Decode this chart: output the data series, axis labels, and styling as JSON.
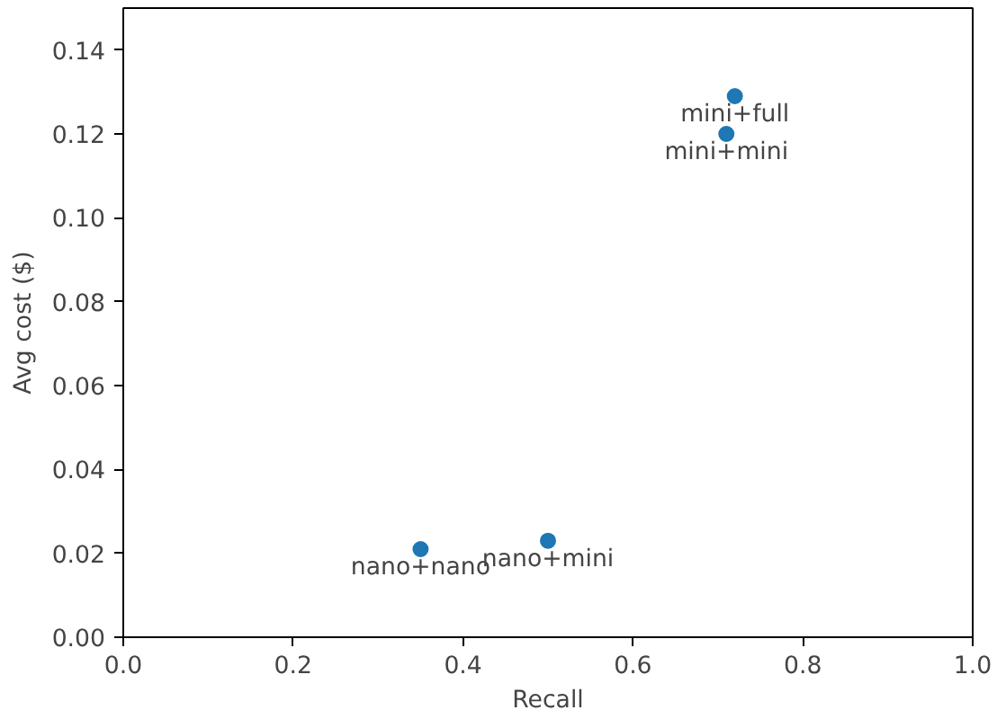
{
  "chart_data": {
    "type": "scatter",
    "xlabel": "Recall",
    "ylabel": "Avg cost ($)",
    "x": [
      0.72,
      0.71,
      0.35,
      0.5
    ],
    "series": [
      {
        "color": "#1f77b4",
        "values": [
          0.129,
          0.12,
          0.021,
          0.023
        ]
      }
    ],
    "marker": "circle",
    "grid": false,
    "xlim": [
      0,
      1
    ],
    "ylim": [
      0,
      0.15
    ],
    "xticks": [
      {
        "value": 0,
        "label": "0.0"
      },
      {
        "value": 0.2,
        "label": "0.2"
      },
      {
        "value": 0.4,
        "label": "0.4"
      },
      {
        "value": 0.6,
        "label": "0.6"
      },
      {
        "value": 0.8,
        "label": "0.8"
      },
      {
        "value": 1,
        "label": "1.0"
      }
    ],
    "yticks": [
      {
        "value": 0,
        "label": "0.00"
      },
      {
        "value": 0.02,
        "label": "0.02"
      },
      {
        "value": 0.04,
        "label": "0.04"
      },
      {
        "value": 0.06,
        "label": "0.06"
      },
      {
        "value": 0.08,
        "label": "0.08"
      },
      {
        "value": 0.1,
        "label": "0.10"
      },
      {
        "value": 0.12,
        "label": "0.12"
      },
      {
        "value": 0.14,
        "label": "0.14"
      }
    ],
    "annotations": [
      {
        "text": "mini+full",
        "x": 0.72,
        "y": 0.129
      },
      {
        "text": "mini+mini",
        "x": 0.71,
        "y": 0.12
      },
      {
        "text": "nano+nano",
        "x": 0.35,
        "y": 0.021
      },
      {
        "text": "nano+mini",
        "x": 0.5,
        "y": 0.023
      }
    ]
  }
}
